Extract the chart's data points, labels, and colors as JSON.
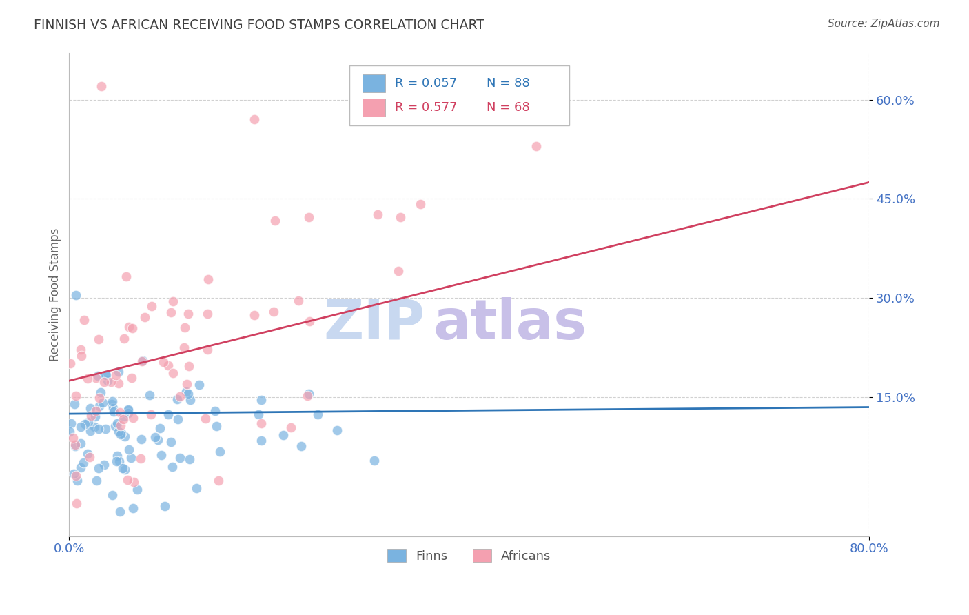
{
  "title": "FINNISH VS AFRICAN RECEIVING FOOD STAMPS CORRELATION CHART",
  "source": "Source: ZipAtlas.com",
  "ylabel": "Receiving Food Stamps",
  "xlim": [
    0.0,
    0.8
  ],
  "ylim": [
    -0.06,
    0.67
  ],
  "ytick_positions": [
    0.15,
    0.3,
    0.45,
    0.6
  ],
  "ytick_labels": [
    "15.0%",
    "30.0%",
    "45.0%",
    "60.0%"
  ],
  "blue_color": "#7AB3E0",
  "pink_color": "#F4A0B0",
  "blue_line_color": "#2E75B6",
  "pink_line_color": "#D04060",
  "legend_R1": "R = 0.057",
  "legend_N1": "N = 88",
  "legend_R2": "R = 0.577",
  "legend_N2": "N = 68",
  "legend_label1": "Finns",
  "legend_label2": "Africans",
  "watermark_zip": "ZIP",
  "watermark_atlas": "atlas",
  "watermark_color_zip": "#C8D8F0",
  "watermark_color_atlas": "#D0C8F0",
  "blue_R": 0.057,
  "blue_N": 88,
  "pink_R": 0.577,
  "pink_N": 68,
  "title_color": "#404040",
  "tick_label_color": "#4472C4",
  "grid_color": "#CCCCCC",
  "blue_line_y0": 0.125,
  "blue_line_y1": 0.135,
  "pink_line_y0": 0.175,
  "pink_line_y1": 0.475
}
